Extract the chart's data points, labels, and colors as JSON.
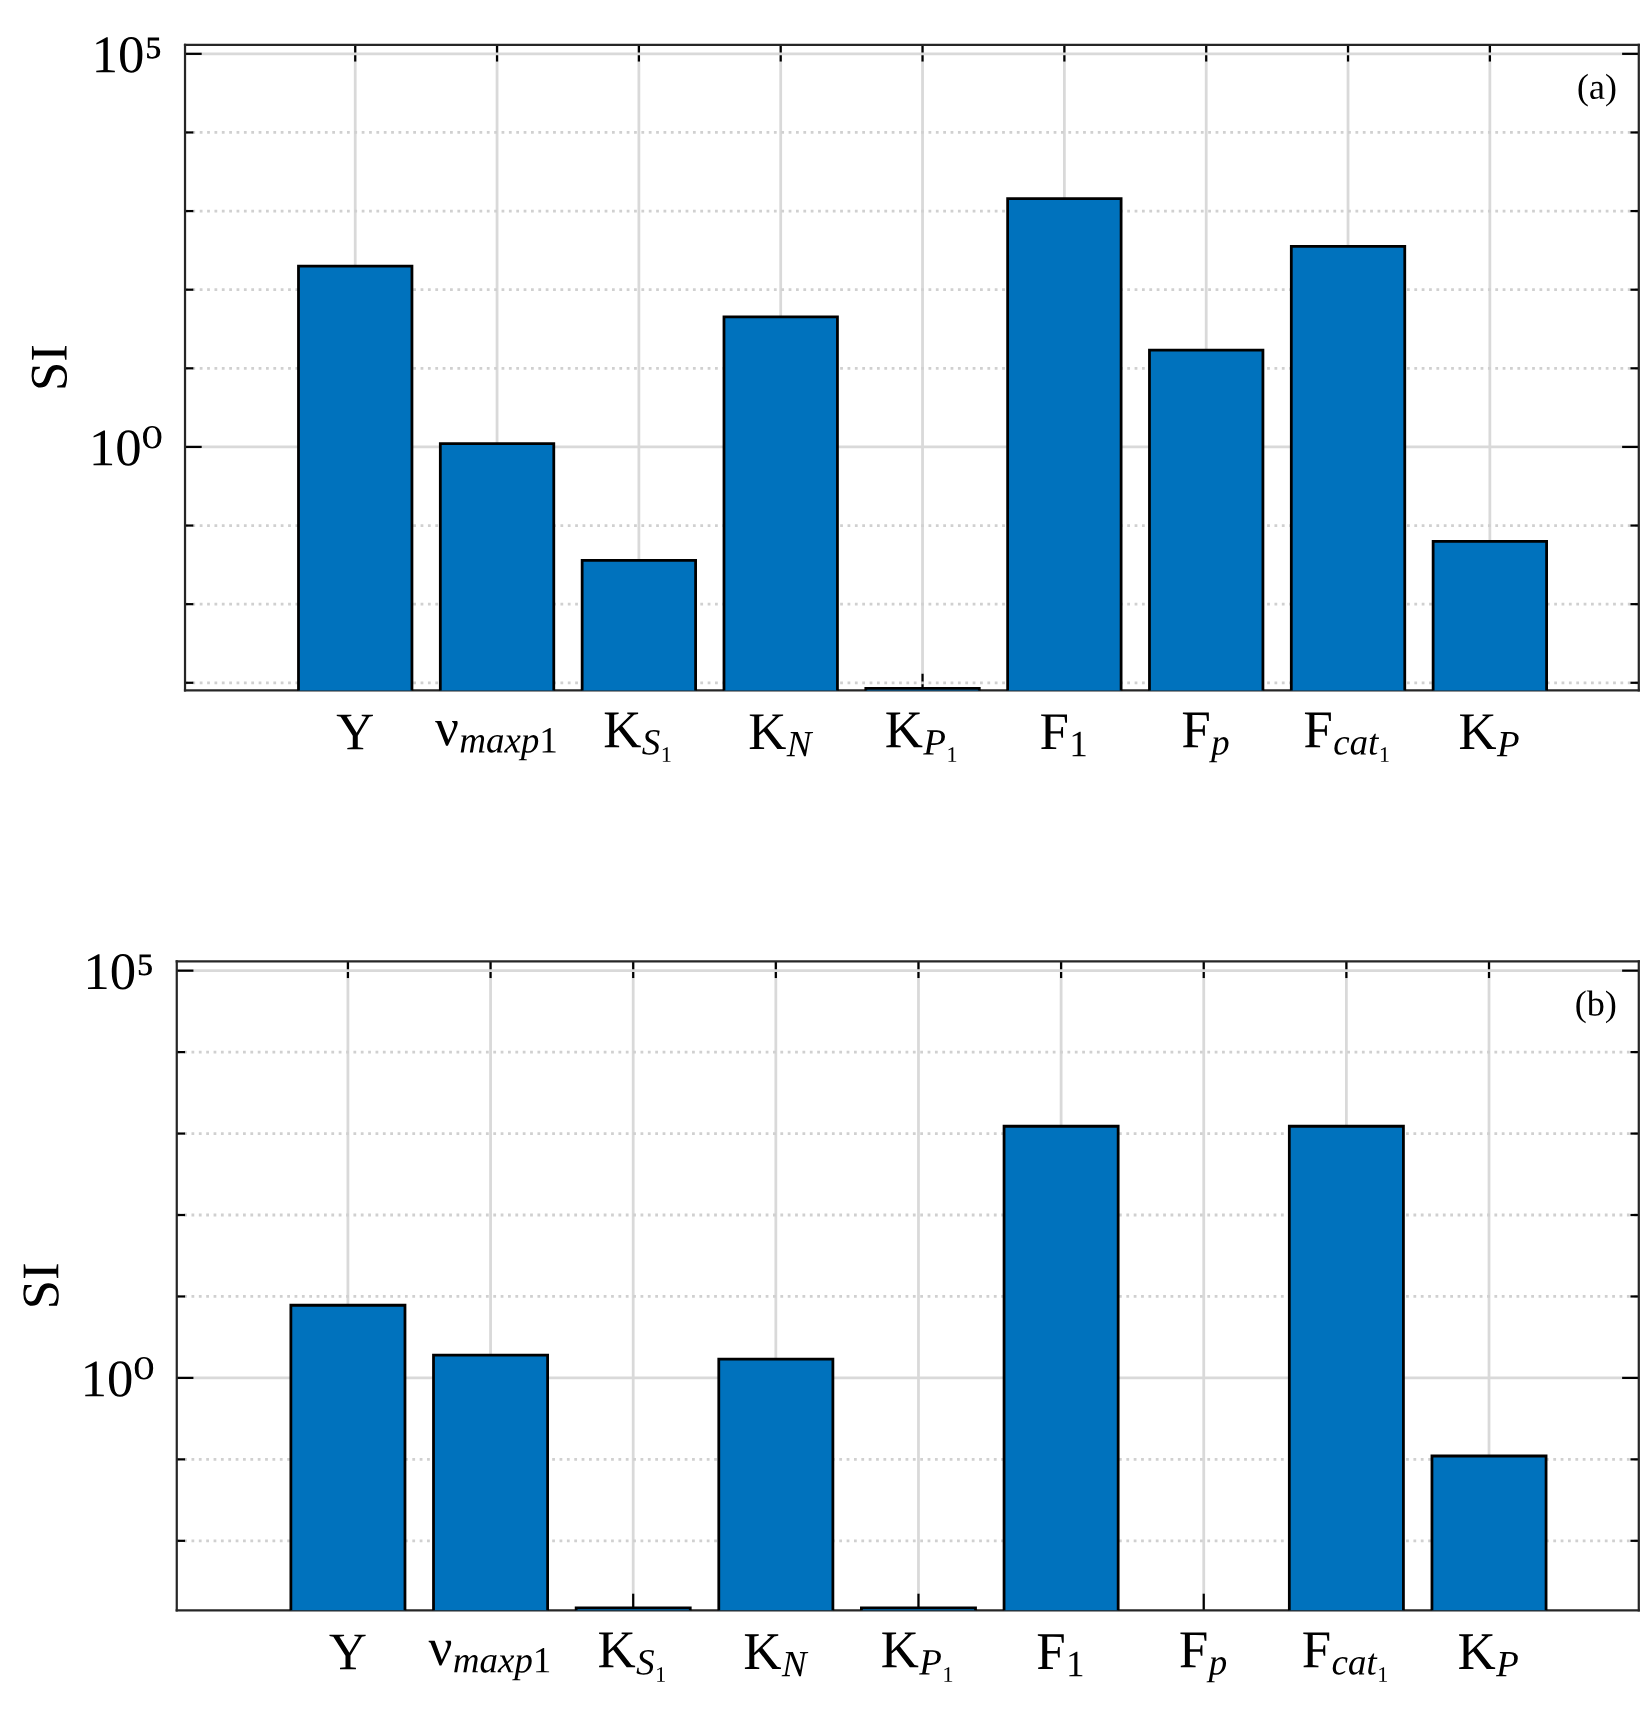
{
  "chart_data": [
    {
      "type": "bar",
      "categories": [
        "Y",
        "ν$_{maxp1}$",
        "K$_{S₁}$",
        "K$_{N}$",
        "K$_{P₁}$",
        "F$_{1}$",
        "F$_{p}$",
        "F$_{cat₁}$",
        "K$_{P}$"
      ],
      "values": [
        200,
        1.1,
        0.036,
        45,
        0.00085,
        1440,
        17,
        355,
        0.063
      ],
      "color": "#0072bd",
      "ylabel": "SI",
      "log": true,
      "ylim": [
        0.0008,
        130000
      ],
      "yticks": [
        {
          "value": 0.001,
          "label": null
        },
        {
          "value": 0.01,
          "label": null
        },
        {
          "value": 0.1,
          "label": null
        },
        {
          "value": 1,
          "label": "10⁰"
        },
        {
          "value": 10,
          "label": null
        },
        {
          "value": 100,
          "label": null
        },
        {
          "value": 1000,
          "label": null
        },
        {
          "value": 10000,
          "label": null
        },
        {
          "value": 100000,
          "label": "10⁵"
        }
      ],
      "grid": true,
      "annotations": [
        "(a)"
      ]
    },
    {
      "type": "bar",
      "categories": [
        "Y",
        "ν$_{maxp1}$",
        "K$_{S₁}$",
        "K$_{N}$",
        "K$_{P₁}$",
        "F$_{1}$",
        "F$_{p}$",
        "F$_{cat₁}$",
        "K$_{P}$"
      ],
      "values": [
        7.8,
        1.9,
        0.0015,
        1.7,
        0.0015,
        1230,
        null,
        1230,
        0.11
      ],
      "color": "#0072bd",
      "ylabel": "SI",
      "log": true,
      "ylim": [
        0.0014,
        130000
      ],
      "yticks": [
        {
          "value": 0.01,
          "label": null
        },
        {
          "value": 0.1,
          "label": null
        },
        {
          "value": 1,
          "label": "10⁰"
        },
        {
          "value": 10,
          "label": null
        },
        {
          "value": 100,
          "label": null
        },
        {
          "value": 1000,
          "label": null
        },
        {
          "value": 10000,
          "label": null
        },
        {
          "value": 100000,
          "label": "10⁵"
        }
      ],
      "grid": true,
      "annotations": [
        "(b)"
      ]
    }
  ]
}
